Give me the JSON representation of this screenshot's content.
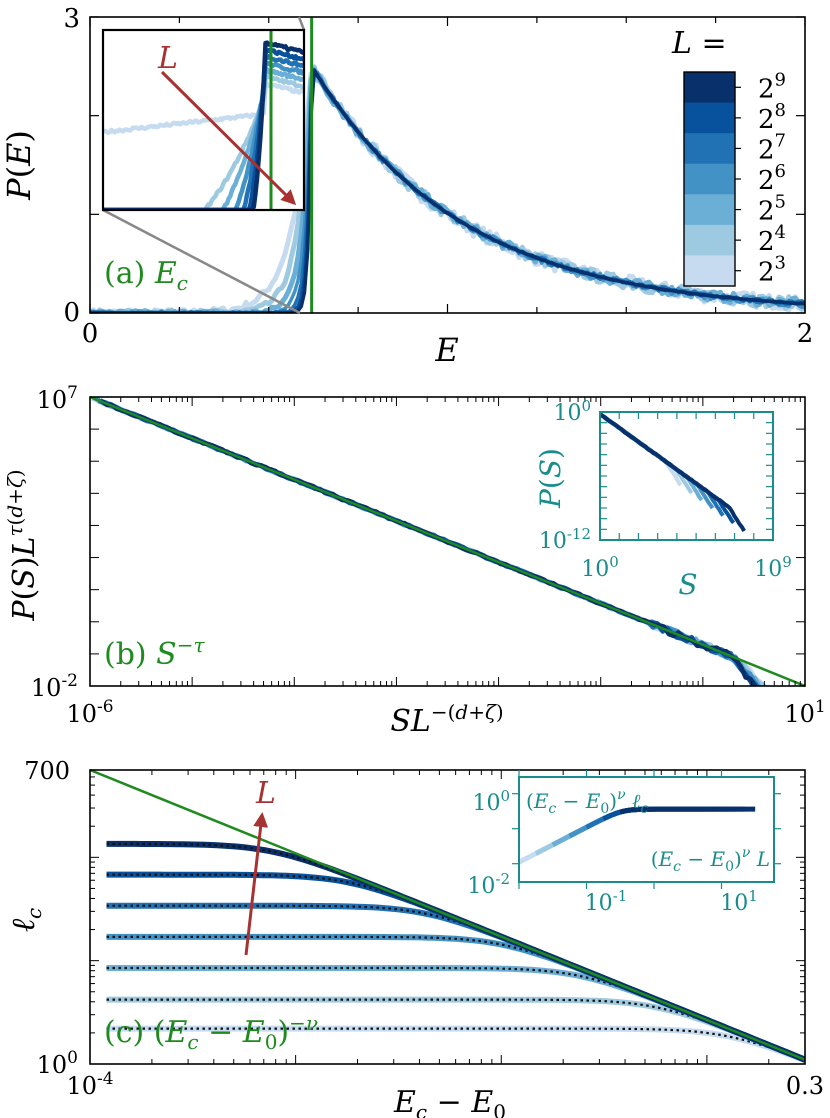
{
  "colors": {
    "L_scale": [
      "#c6dbef",
      "#9ecae1",
      "#6baed6",
      "#4292c6",
      "#2171b5",
      "#08519c",
      "#08306b"
    ],
    "fit_green": "#1f8a1f",
    "annot_red": "#a83232",
    "inset_teal": "#1a8c8c",
    "zoom_gray": "#888888",
    "axis_black": "#000000"
  },
  "chart_data": [
    {
      "panel": "a",
      "type": "line",
      "xlabel": "E",
      "ylabel": "P(E)",
      "xlim": [
        0,
        2
      ],
      "ylim": [
        0,
        3
      ],
      "x_ticklabels": [
        "0",
        "2"
      ],
      "y_ticklabels": [
        "0",
        "3"
      ],
      "annotation": {
        "prefix": "(a) ",
        "symbol": "E",
        "sub": "c"
      },
      "E_c": 0.62,
      "peak": 2.5,
      "decay_scale": 0.42,
      "series": [
        {
          "name": "2^3",
          "L": 8
        },
        {
          "name": "2^4",
          "L": 16
        },
        {
          "name": "2^5",
          "L": 32
        },
        {
          "name": "2^6",
          "L": 64
        },
        {
          "name": "2^7",
          "L": 128
        },
        {
          "name": "2^8",
          "L": 256
        },
        {
          "name": "2^9",
          "L": 512
        }
      ],
      "legend": {
        "title": "L =",
        "base": "2",
        "exponents": [
          "9",
          "8",
          "7",
          "6",
          "5",
          "4",
          "3"
        ],
        "placement": "right colorbar"
      },
      "inset": {
        "label": "L",
        "arrow": "increasing L"
      }
    },
    {
      "panel": "b",
      "type": "line",
      "xscale": "log",
      "yscale": "log",
      "xlim": [
        1e-06,
        10
      ],
      "ylim": [
        0.01,
        10000000.0
      ],
      "x_ticklabels": [
        {
          "b": "10",
          "e": "-6"
        },
        {
          "b": "10",
          "e": "1"
        }
      ],
      "y_ticklabels": [
        {
          "b": "10",
          "e": "-2"
        },
        {
          "b": "10",
          "e": "7"
        }
      ],
      "xlabel": "SL^-(d+ζ)",
      "ylabel": "P(S)L^τ(d+ζ)",
      "annotation": {
        "prefix": "(b) ",
        "symbol": "S",
        "sup": "−τ"
      },
      "fit": {
        "x": [
          1e-06,
          10
        ],
        "y": [
          10000000.0,
          0.01
        ]
      },
      "inset": {
        "xscale": "log",
        "yscale": "log",
        "xlim": [
          1,
          1000000000.0
        ],
        "ylim": [
          1e-12,
          1
        ],
        "x_ticklabels": [
          {
            "b": "10",
            "e": "0"
          },
          {
            "b": "10",
            "e": "9"
          }
        ],
        "y_ticklabels": [
          {
            "b": "10",
            "e": "0"
          },
          {
            "b": "10",
            "e": "-12"
          }
        ],
        "xlabel": "S",
        "ylabel": "P(S)"
      }
    },
    {
      "panel": "c",
      "type": "line",
      "xscale": "log",
      "yscale": "log",
      "xlim": [
        0.0001,
        0.3
      ],
      "ylim": [
        1,
        700
      ],
      "x_ticklabels": [
        {
          "b": "10",
          "e": "-4"
        },
        {
          "b": "0.3",
          "e": ""
        }
      ],
      "y_ticklabels": [
        {
          "b": "10",
          "e": "0"
        },
        {
          "b": "700",
          "e": ""
        }
      ],
      "xlabel": "E_c − E_0",
      "ylabel": "ℓ_c",
      "annotation": "(c) (E_c − E_0)^−ν",
      "fit": {
        "x": [
          0.0001,
          0.3
        ],
        "y": [
          700,
          1.1
        ]
      },
      "series_plateaus": [
        2.2,
        4.2,
        8.5,
        17,
        34,
        68,
        135
      ],
      "arrow_label": "L",
      "inset": {
        "xscale": "log",
        "yscale": "log",
        "xlim": [
          0.01,
          60
        ],
        "ylim": [
          0.003,
          3
        ],
        "x_ticklabels": [
          {
            "b": "10",
            "e": "-1"
          },
          {
            "b": "10",
            "e": "1"
          }
        ],
        "y_ticklabels": [
          {
            "b": "10",
            "e": "0"
          },
          {
            "b": "10",
            "e": "-2"
          }
        ],
        "ylabel": "(E_c − E_0)^ν ℓ_c",
        "xlabel": "(E_c − E_0)^ν L"
      }
    }
  ]
}
